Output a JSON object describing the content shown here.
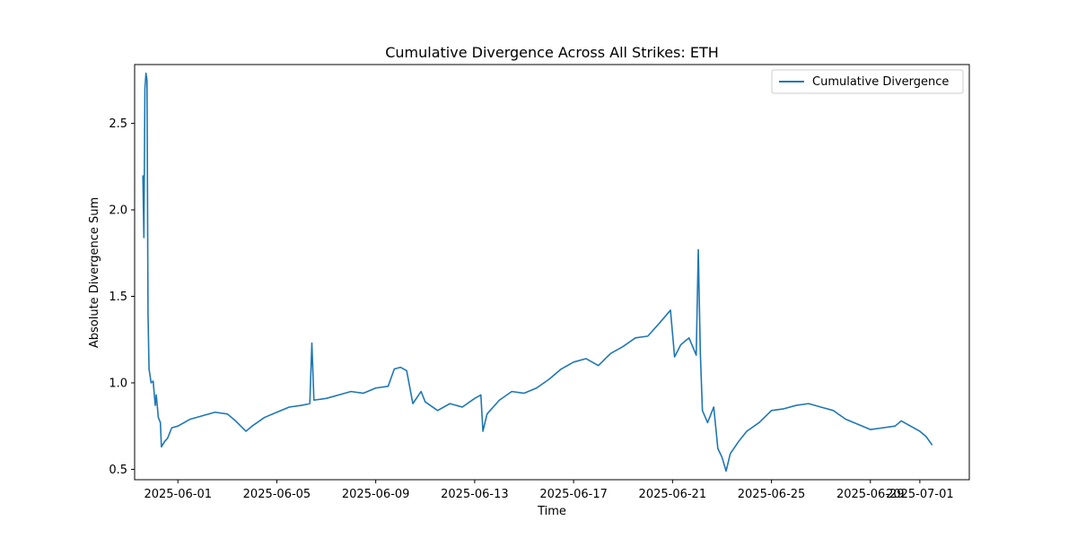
{
  "chart_data": {
    "type": "line",
    "title": "Cumulative Divergence Across All Strikes: ETH",
    "xlabel": "Time",
    "ylabel": "Absolute Divergence Sum",
    "x_ticks": [
      "2025-06-01",
      "2025-06-05",
      "2025-06-09",
      "2025-06-13",
      "2025-06-17",
      "2025-06-21",
      "2025-06-25",
      "2025-06-29",
      "2025-07-01"
    ],
    "y_ticks": [
      0.5,
      1.0,
      1.5,
      2.0,
      2.5
    ],
    "xlim": [
      "2025-05-30T06:00",
      "2025-07-03T00:00"
    ],
    "ylim": [
      0.44,
      2.84
    ],
    "grid": false,
    "legend_position": "top-right",
    "colors": {
      "series": "#1f77b4"
    },
    "series": [
      {
        "name": "Cumulative Divergence",
        "points": [
          [
            "2025-05-30T14:00",
            2.2
          ],
          [
            "2025-05-30T15:00",
            1.84
          ],
          [
            "2025-05-30T16:00",
            2.7
          ],
          [
            "2025-05-30T17:00",
            2.79
          ],
          [
            "2025-05-30T18:00",
            2.75
          ],
          [
            "2025-05-30T19:00",
            1.4
          ],
          [
            "2025-05-30T20:00",
            1.08
          ],
          [
            "2025-05-30T22:00",
            1.0
          ],
          [
            "2025-05-31T00:00",
            1.01
          ],
          [
            "2025-05-31T02:00",
            0.87
          ],
          [
            "2025-05-31T03:00",
            0.93
          ],
          [
            "2025-05-31T05:00",
            0.8
          ],
          [
            "2025-05-31T07:00",
            0.77
          ],
          [
            "2025-05-31T08:00",
            0.63
          ],
          [
            "2025-05-31T11:00",
            0.66
          ],
          [
            "2025-05-31T14:00",
            0.68
          ],
          [
            "2025-05-31T18:00",
            0.74
          ],
          [
            "2025-06-01T00:00",
            0.75
          ],
          [
            "2025-06-01T12:00",
            0.79
          ],
          [
            "2025-06-02T00:00",
            0.81
          ],
          [
            "2025-06-02T12:00",
            0.83
          ],
          [
            "2025-06-03T00:00",
            0.82
          ],
          [
            "2025-06-03T08:00",
            0.78
          ],
          [
            "2025-06-03T18:00",
            0.72
          ],
          [
            "2025-06-04T00:00",
            0.75
          ],
          [
            "2025-06-04T12:00",
            0.8
          ],
          [
            "2025-06-05T00:00",
            0.83
          ],
          [
            "2025-06-05T12:00",
            0.86
          ],
          [
            "2025-06-06T00:00",
            0.87
          ],
          [
            "2025-06-06T08:00",
            0.88
          ],
          [
            "2025-06-06T10:00",
            1.23
          ],
          [
            "2025-06-06T12:00",
            0.9
          ],
          [
            "2025-06-07T00:00",
            0.91
          ],
          [
            "2025-06-07T12:00",
            0.93
          ],
          [
            "2025-06-08T00:00",
            0.95
          ],
          [
            "2025-06-08T12:00",
            0.94
          ],
          [
            "2025-06-09T00:00",
            0.97
          ],
          [
            "2025-06-09T12:00",
            0.98
          ],
          [
            "2025-06-09T18:00",
            1.08
          ],
          [
            "2025-06-10T00:00",
            1.09
          ],
          [
            "2025-06-10T06:00",
            1.07
          ],
          [
            "2025-06-10T12:00",
            0.88
          ],
          [
            "2025-06-10T20:00",
            0.95
          ],
          [
            "2025-06-11T00:00",
            0.89
          ],
          [
            "2025-06-11T12:00",
            0.84
          ],
          [
            "2025-06-12T00:00",
            0.88
          ],
          [
            "2025-06-12T12:00",
            0.86
          ],
          [
            "2025-06-13T00:00",
            0.91
          ],
          [
            "2025-06-13T06:00",
            0.93
          ],
          [
            "2025-06-13T08:00",
            0.72
          ],
          [
            "2025-06-13T12:00",
            0.82
          ],
          [
            "2025-06-14T00:00",
            0.9
          ],
          [
            "2025-06-14T12:00",
            0.95
          ],
          [
            "2025-06-15T00:00",
            0.94
          ],
          [
            "2025-06-15T12:00",
            0.97
          ],
          [
            "2025-06-16T00:00",
            1.02
          ],
          [
            "2025-06-16T12:00",
            1.08
          ],
          [
            "2025-06-17T00:00",
            1.12
          ],
          [
            "2025-06-17T12:00",
            1.14
          ],
          [
            "2025-06-18T00:00",
            1.1
          ],
          [
            "2025-06-18T12:00",
            1.17
          ],
          [
            "2025-06-19T00:00",
            1.21
          ],
          [
            "2025-06-19T12:00",
            1.26
          ],
          [
            "2025-06-20T00:00",
            1.27
          ],
          [
            "2025-06-20T12:00",
            1.35
          ],
          [
            "2025-06-20T22:00",
            1.42
          ],
          [
            "2025-06-21T02:00",
            1.15
          ],
          [
            "2025-06-21T08:00",
            1.22
          ],
          [
            "2025-06-21T16:00",
            1.26
          ],
          [
            "2025-06-21T23:00",
            1.16
          ],
          [
            "2025-06-22T01:00",
            1.77
          ],
          [
            "2025-06-22T03:00",
            1.17
          ],
          [
            "2025-06-22T05:00",
            0.84
          ],
          [
            "2025-06-22T10:00",
            0.77
          ],
          [
            "2025-06-22T16:00",
            0.86
          ],
          [
            "2025-06-22T20:00",
            0.62
          ],
          [
            "2025-06-23T00:00",
            0.57
          ],
          [
            "2025-06-23T04:00",
            0.49
          ],
          [
            "2025-06-23T08:00",
            0.59
          ],
          [
            "2025-06-23T16:00",
            0.66
          ],
          [
            "2025-06-24T00:00",
            0.72
          ],
          [
            "2025-06-24T12:00",
            0.77
          ],
          [
            "2025-06-25T00:00",
            0.84
          ],
          [
            "2025-06-25T12:00",
            0.85
          ],
          [
            "2025-06-26T00:00",
            0.87
          ],
          [
            "2025-06-26T12:00",
            0.88
          ],
          [
            "2025-06-27T00:00",
            0.86
          ],
          [
            "2025-06-27T12:00",
            0.84
          ],
          [
            "2025-06-28T00:00",
            0.79
          ],
          [
            "2025-06-28T12:00",
            0.76
          ],
          [
            "2025-06-29T00:00",
            0.73
          ],
          [
            "2025-06-29T12:00",
            0.74
          ],
          [
            "2025-06-30T00:00",
            0.75
          ],
          [
            "2025-06-30T06:00",
            0.78
          ],
          [
            "2025-06-30T18:00",
            0.74
          ],
          [
            "2025-07-01T00:00",
            0.72
          ],
          [
            "2025-07-01T06:00",
            0.69
          ],
          [
            "2025-07-01T12:00",
            0.64
          ]
        ]
      }
    ]
  }
}
